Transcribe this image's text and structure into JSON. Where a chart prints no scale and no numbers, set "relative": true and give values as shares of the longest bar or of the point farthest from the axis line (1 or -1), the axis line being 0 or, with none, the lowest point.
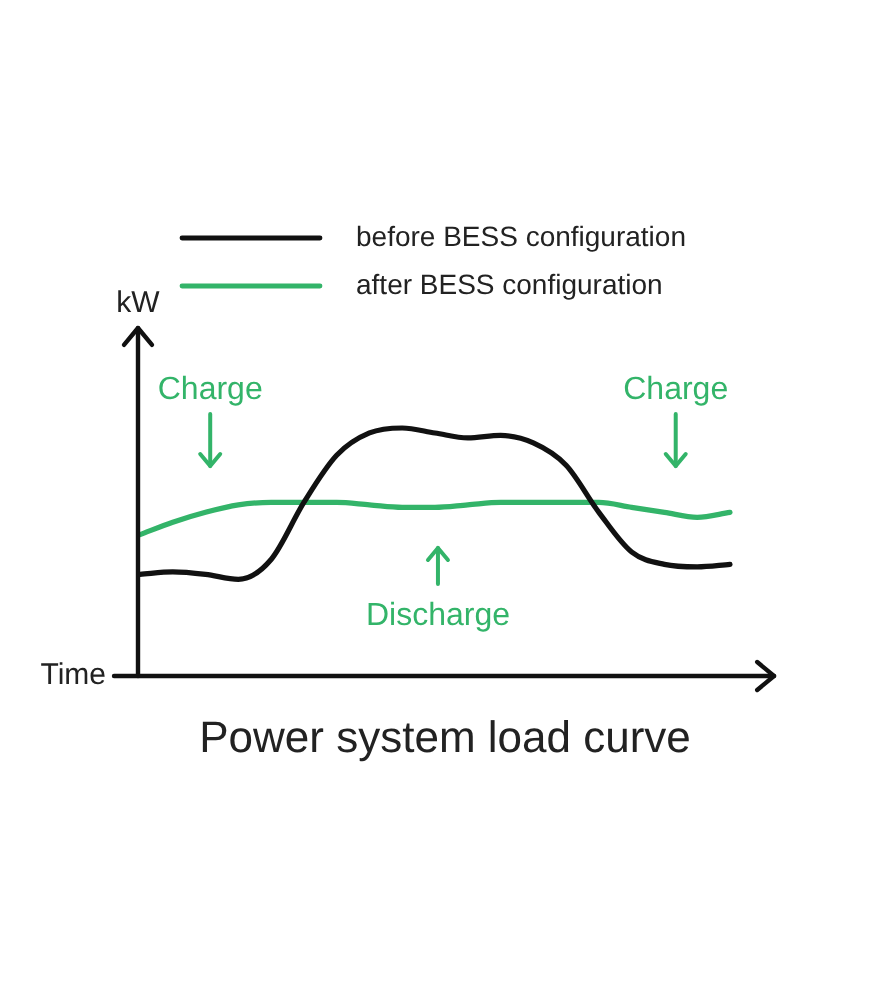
{
  "chart_data": {
    "type": "line",
    "title": "Power system load curve",
    "xlabel": "Time",
    "ylabel": "kW",
    "relative": true,
    "legend": "top",
    "tick_labels": false,
    "marker": "none",
    "line_style": "solid",
    "categories": [
      null,
      null,
      null,
      null,
      null,
      null,
      null,
      null,
      null,
      null,
      null,
      null,
      null,
      null,
      null,
      null,
      null,
      null,
      null
    ],
    "series": [
      {
        "name": "before BESS configuration",
        "color": "#111111",
        "values": [
          0.41,
          0.42,
          0.41,
          0.39,
          0.47,
          0.7,
          0.89,
          0.98,
          1.0,
          0.98,
          0.96,
          0.97,
          0.94,
          0.85,
          0.66,
          0.5,
          0.45,
          0.44,
          0.45
        ]
      },
      {
        "name": "after BESS configuration",
        "color": "#33b469",
        "values": [
          0.57,
          0.62,
          0.66,
          0.69,
          0.7,
          0.7,
          0.7,
          0.69,
          0.68,
          0.68,
          0.69,
          0.7,
          0.7,
          0.7,
          0.7,
          0.68,
          0.66,
          0.64,
          0.66
        ]
      }
    ],
    "annotations": [
      "Charge",
      "Charge",
      "Discharge"
    ]
  }
}
